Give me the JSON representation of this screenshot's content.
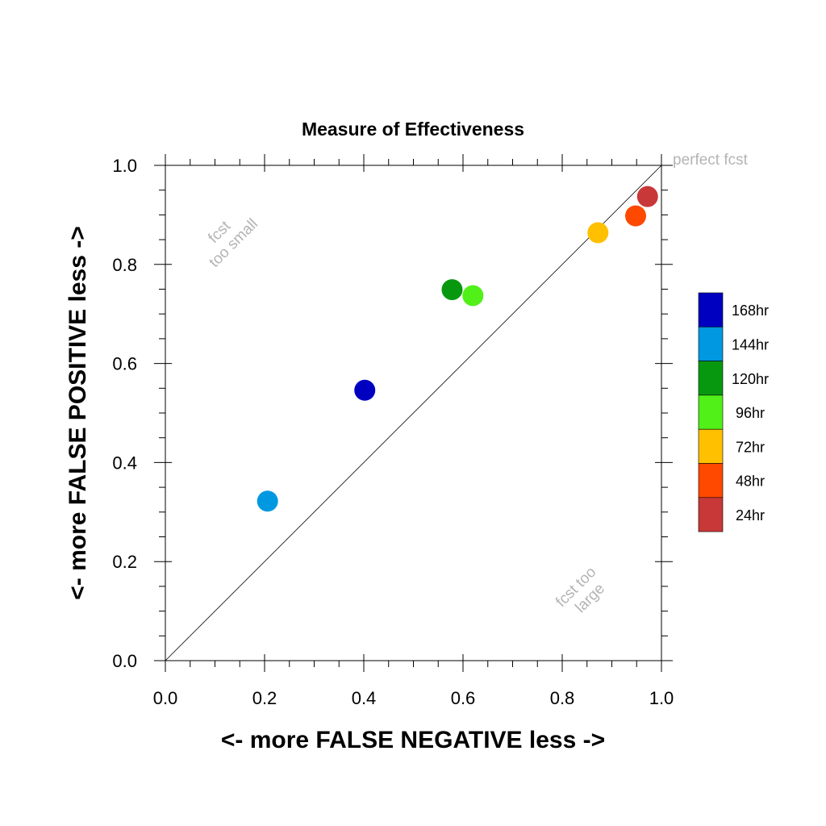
{
  "chart_data": {
    "type": "scatter",
    "title": "Measure of Effectiveness",
    "xlabel": "<- more   FALSE NEGATIVE   less ->",
    "ylabel": "<- more   FALSE POSITIVE   less ->",
    "xlim": [
      0.0,
      1.0
    ],
    "ylim": [
      0.0,
      1.0
    ],
    "xticks": [
      "0.0",
      "0.2",
      "0.4",
      "0.6",
      "0.8",
      "1.0"
    ],
    "yticks": [
      "0.0",
      "0.2",
      "0.4",
      "0.6",
      "0.8",
      "1.0"
    ],
    "diagonal_line": true,
    "annotations": {
      "upper_left": [
        "fcst",
        "too small"
      ],
      "lower_right": [
        "fcst too",
        "large"
      ],
      "corner": "perfect fcst"
    },
    "legend_position": "right",
    "series": [
      {
        "name": "168hr",
        "color": "#0000c0",
        "x": 0.402,
        "y": 0.546
      },
      {
        "name": "144hr",
        "color": "#0098e0",
        "x": 0.206,
        "y": 0.322
      },
      {
        "name": "120hr",
        "color": "#089810",
        "x": 0.578,
        "y": 0.749
      },
      {
        "name": "96hr",
        "color": "#50f018",
        "x": 0.62,
        "y": 0.737
      },
      {
        "name": "72hr",
        "color": "#ffc000",
        "x": 0.872,
        "y": 0.864
      },
      {
        "name": "48hr",
        "color": "#ff4800",
        "x": 0.948,
        "y": 0.898
      },
      {
        "name": "24hr",
        "color": "#c83838",
        "x": 0.972,
        "y": 0.937
      }
    ]
  }
}
